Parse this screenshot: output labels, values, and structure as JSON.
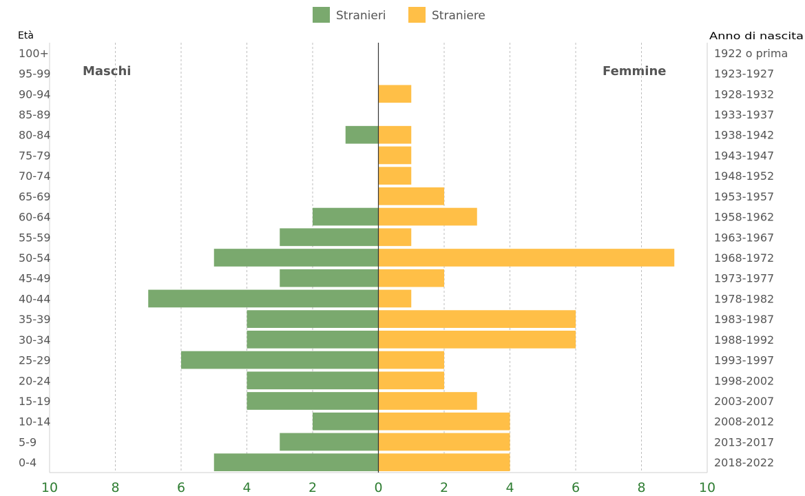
{
  "chart_data": {
    "type": "bar",
    "orientation": "horizontal",
    "layout": "population-pyramid",
    "left_header": "Età",
    "right_header": "Anno di nascita",
    "left_side_label": "Maschi",
    "right_side_label": "Femmine",
    "legend": [
      {
        "name": "Stranieri",
        "color": "#7aa96e"
      },
      {
        "name": "Straniere",
        "color": "#ffbf47"
      }
    ],
    "legend_position": "top-center",
    "xlim": [
      -10,
      10
    ],
    "x_ticks": [
      "10",
      "8",
      "6",
      "4",
      "2",
      "0",
      "2",
      "4",
      "6",
      "8",
      "10"
    ],
    "x_tick_values": [
      -10,
      -8,
      -6,
      -4,
      -2,
      0,
      2,
      4,
      6,
      8,
      10
    ],
    "grid": true,
    "age_groups": [
      "100+",
      "95-99",
      "90-94",
      "85-89",
      "80-84",
      "75-79",
      "70-74",
      "65-69",
      "60-64",
      "55-59",
      "50-54",
      "45-49",
      "40-44",
      "35-39",
      "30-34",
      "25-29",
      "20-24",
      "15-19",
      "10-14",
      "5-9",
      "0-4"
    ],
    "birth_years": [
      "1922 o prima",
      "1923-1927",
      "1928-1932",
      "1933-1937",
      "1938-1942",
      "1943-1947",
      "1948-1952",
      "1953-1957",
      "1958-1962",
      "1963-1967",
      "1968-1972",
      "1973-1977",
      "1978-1982",
      "1983-1987",
      "1988-1992",
      "1993-1997",
      "1998-2002",
      "2003-2007",
      "2008-2012",
      "2013-2017",
      "2018-2022"
    ],
    "series": [
      {
        "name": "Stranieri",
        "values": [
          0,
          0,
          0,
          0,
          1,
          0,
          0,
          0,
          2,
          3,
          5,
          3,
          7,
          4,
          4,
          6,
          4,
          4,
          2,
          3,
          5
        ]
      },
      {
        "name": "Straniere",
        "values": [
          0,
          0,
          1,
          0,
          1,
          1,
          1,
          2,
          3,
          1,
          9,
          2,
          1,
          6,
          6,
          2,
          2,
          3,
          4,
          4,
          4
        ]
      }
    ],
    "tick_color": "#2e7d32",
    "grid_color": "#bdbdbd"
  }
}
